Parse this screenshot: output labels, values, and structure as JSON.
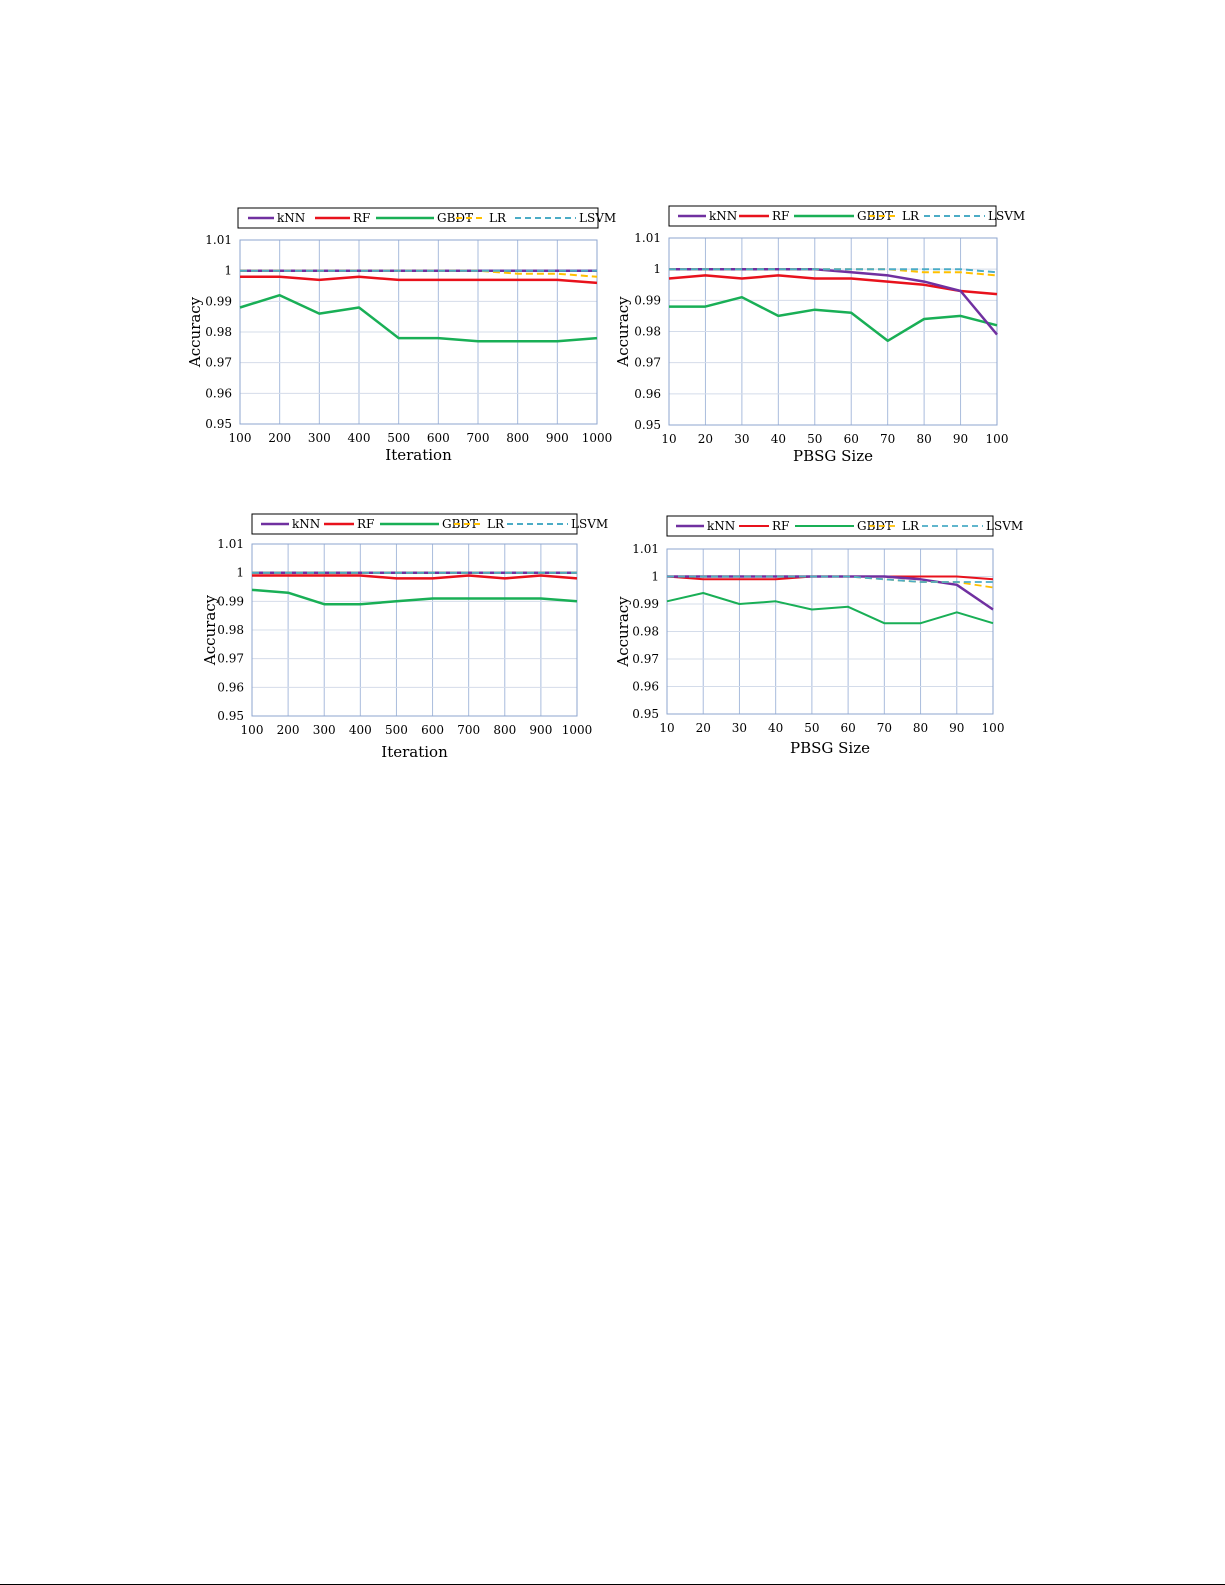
{
  "chart_data": [
    {
      "type": "line",
      "xlabel": "Iteration",
      "ylabel": "Accuracy",
      "x": [
        100,
        200,
        300,
        400,
        500,
        600,
        700,
        800,
        900,
        1000
      ],
      "ylim": [
        0.95,
        1.01
      ],
      "yticks": [
        "0.95",
        "0.96",
        "0.97",
        "0.98",
        "0.99",
        "1",
        "1.01"
      ],
      "grid": true,
      "legend_position": "top",
      "series": [
        {
          "name": "kNN",
          "color": "#7030A0",
          "dash": "solid",
          "width": 2.5,
          "values": [
            1.0,
            1.0,
            1.0,
            1.0,
            1.0,
            1.0,
            1.0,
            1.0,
            1.0,
            1.0
          ]
        },
        {
          "name": "RF",
          "color": "#E8121C",
          "dash": "solid",
          "width": 2.5,
          "values": [
            0.998,
            0.998,
            0.997,
            0.998,
            0.997,
            0.997,
            0.997,
            0.997,
            0.997,
            0.996
          ]
        },
        {
          "name": "GBDT",
          "color": "#19AF56",
          "dash": "solid",
          "width": 2.5,
          "values": [
            0.988,
            0.992,
            0.986,
            0.988,
            0.978,
            0.978,
            0.977,
            0.977,
            0.977,
            0.978
          ]
        },
        {
          "name": "LR",
          "color": "#FFC000",
          "dash": "dashed",
          "width": 2,
          "values": [
            1.0,
            1.0,
            1.0,
            1.0,
            1.0,
            1.0,
            1.0,
            0.999,
            0.999,
            0.998
          ]
        },
        {
          "name": "LSVM",
          "color": "#4BACC6",
          "dash": "dashed",
          "width": 2,
          "values": [
            1.0,
            1.0,
            1.0,
            1.0,
            1.0,
            1.0,
            1.0,
            1.0,
            1.0,
            1.0
          ]
        }
      ]
    },
    {
      "type": "line",
      "xlabel": "PBSG Size",
      "ylabel": "Accuracy",
      "x": [
        10,
        20,
        30,
        40,
        50,
        60,
        70,
        80,
        90,
        100
      ],
      "ylim": [
        0.95,
        1.01
      ],
      "yticks": [
        "0.95",
        "0.96",
        "0.97",
        "0.98",
        "0.99",
        "1",
        "1.01"
      ],
      "grid": true,
      "legend_position": "top",
      "series": [
        {
          "name": "kNN",
          "color": "#7030A0",
          "dash": "solid",
          "width": 2.5,
          "values": [
            1.0,
            1.0,
            1.0,
            1.0,
            1.0,
            0.999,
            0.998,
            0.996,
            0.993,
            0.979
          ]
        },
        {
          "name": "RF",
          "color": "#E8121C",
          "dash": "solid",
          "width": 2.5,
          "values": [
            0.997,
            0.998,
            0.997,
            0.998,
            0.997,
            0.997,
            0.996,
            0.995,
            0.993,
            0.992
          ]
        },
        {
          "name": "GBDT",
          "color": "#19AF56",
          "dash": "solid",
          "width": 2.5,
          "values": [
            0.988,
            0.988,
            0.991,
            0.985,
            0.987,
            0.986,
            0.977,
            0.984,
            0.985,
            0.982
          ]
        },
        {
          "name": "LR",
          "color": "#FFC000",
          "dash": "dashed",
          "width": 2,
          "values": [
            1.0,
            1.0,
            1.0,
            1.0,
            1.0,
            1.0,
            1.0,
            0.999,
            0.999,
            0.998
          ]
        },
        {
          "name": "LSVM",
          "color": "#4BACC6",
          "dash": "dashed",
          "width": 2,
          "values": [
            1.0,
            1.0,
            1.0,
            1.0,
            1.0,
            1.0,
            1.0,
            1.0,
            1.0,
            0.999
          ]
        }
      ]
    },
    {
      "type": "line",
      "xlabel": "Iteration",
      "ylabel": "Accuracy",
      "x": [
        100,
        200,
        300,
        400,
        500,
        600,
        700,
        800,
        900,
        1000
      ],
      "ylim": [
        0.95,
        1.01
      ],
      "yticks": [
        "0.95",
        "0.96",
        "0.97",
        "0.98",
        "0.99",
        "1",
        "1.01"
      ],
      "grid": true,
      "legend_position": "top",
      "series": [
        {
          "name": "kNN",
          "color": "#7030A0",
          "dash": "solid",
          "width": 2.5,
          "values": [
            1.0,
            1.0,
            1.0,
            1.0,
            1.0,
            1.0,
            1.0,
            1.0,
            1.0,
            1.0
          ]
        },
        {
          "name": "RF",
          "color": "#E8121C",
          "dash": "solid",
          "width": 2.5,
          "values": [
            0.999,
            0.999,
            0.999,
            0.999,
            0.998,
            0.998,
            0.999,
            0.998,
            0.999,
            0.998
          ]
        },
        {
          "name": "GBDT",
          "color": "#19AF56",
          "dash": "solid",
          "width": 2.5,
          "values": [
            0.994,
            0.993,
            0.989,
            0.989,
            0.99,
            0.991,
            0.991,
            0.991,
            0.991,
            0.99
          ]
        },
        {
          "name": "LR",
          "color": "#FFC000",
          "dash": "dashed",
          "width": 2,
          "values": [
            1.0,
            1.0,
            1.0,
            1.0,
            1.0,
            1.0,
            1.0,
            1.0,
            1.0,
            1.0
          ]
        },
        {
          "name": "LSVM",
          "color": "#4BACC6",
          "dash": "dashed",
          "width": 2,
          "values": [
            1.0,
            1.0,
            1.0,
            1.0,
            1.0,
            1.0,
            1.0,
            1.0,
            1.0,
            1.0
          ]
        }
      ]
    },
    {
      "type": "line",
      "xlabel": "PBSG Size",
      "ylabel": "Accuracy",
      "x": [
        10,
        20,
        30,
        40,
        50,
        60,
        70,
        80,
        90,
        100
      ],
      "ylim": [
        0.95,
        1.01
      ],
      "yticks": [
        "0.95",
        "0.96",
        "0.97",
        "0.98",
        "0.99",
        "1",
        "1.01"
      ],
      "grid": true,
      "legend_position": "top",
      "series": [
        {
          "name": "kNN",
          "color": "#7030A0",
          "dash": "solid",
          "width": 2.5,
          "values": [
            1.0,
            1.0,
            1.0,
            1.0,
            1.0,
            1.0,
            1.0,
            0.999,
            0.997,
            0.988
          ]
        },
        {
          "name": "RF",
          "color": "#E8121C",
          "dash": "solid",
          "width": 2,
          "values": [
            1.0,
            0.999,
            0.999,
            0.999,
            1.0,
            1.0,
            1.0,
            1.0,
            1.0,
            0.999
          ]
        },
        {
          "name": "GBDT",
          "color": "#19AF56",
          "dash": "solid",
          "width": 2,
          "values": [
            0.991,
            0.994,
            0.99,
            0.991,
            0.988,
            0.989,
            0.983,
            0.983,
            0.987,
            0.983
          ]
        },
        {
          "name": "LR",
          "color": "#FFC000",
          "dash": "dashed",
          "width": 1.8,
          "values": [
            1.0,
            1.0,
            1.0,
            1.0,
            1.0,
            1.0,
            0.999,
            0.998,
            0.998,
            0.996
          ]
        },
        {
          "name": "LSVM",
          "color": "#4BACC6",
          "dash": "dashed",
          "width": 1.8,
          "values": [
            1.0,
            1.0,
            1.0,
            1.0,
            1.0,
            1.0,
            0.999,
            0.998,
            0.998,
            0.998
          ]
        }
      ]
    }
  ]
}
